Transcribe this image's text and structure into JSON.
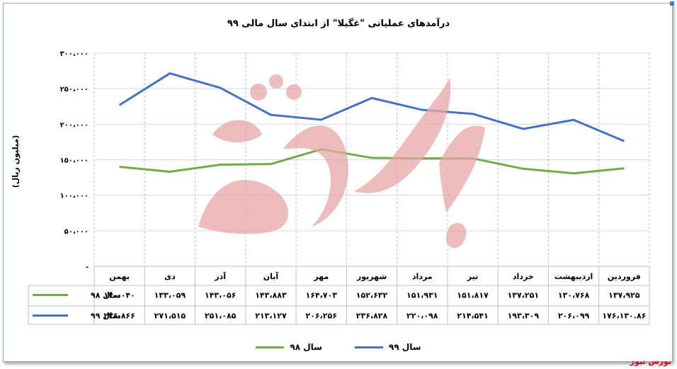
{
  "title": "درآمدهای عملیاتی \"غگیلا\"  از ابتدای سال مالی ۹۹",
  "brand": "بورس نیوز",
  "chart_data": {
    "type": "line",
    "title": "درآمدهای عملیاتی \"غگیلا\"  از ابتدای سال مالی ۹۹",
    "ylabel": "(میلیون ریال)",
    "xlabel": "",
    "ylim": [
      0,
      300000
    ],
    "y_ticks": [
      0,
      50000,
      100000,
      150000,
      200000,
      250000,
      300000
    ],
    "y_tick_labels": [
      "-",
      "۵۰،۰۰۰",
      "۱۰۰،۰۰۰",
      "۱۵۰،۰۰۰",
      "۲۰۰،۰۰۰",
      "۲۵۰،۰۰۰",
      "۳۰۰،۰۰۰"
    ],
    "grid": true,
    "legend_position": "bottom",
    "categories": [
      "فروردین",
      "اردیبهشت",
      "خرداد",
      "تیر",
      "مرداد",
      "شهریور",
      "مهر",
      "آبان",
      "آذر",
      "دی",
      "بهمن"
    ],
    "series": [
      {
        "name": "سال ۹۸",
        "color": "#70ad47",
        "values": [
          137925,
          130768,
          137251,
          151817,
          151931,
          152632,
          164703,
          143883,
          143056,
          133059,
          140040
        ],
        "labels": [
          "۱۳۷،۹۲۵",
          "۱۳۰،۷۶۸",
          "۱۳۷،۲۵۱",
          "۱۵۱،۸۱۷",
          "۱۵۱،۹۳۱",
          "۱۵۲،۶۳۲",
          "۱۶۴،۷۰۳",
          "۱۴۳،۸۸۳",
          "۱۴۳،۰۵۶",
          "۱۳۳،۰۵۹",
          "۱۴۰،۰۴۰"
        ]
      },
      {
        "name": "سال ۹۹",
        "color": "#4472c4",
        "values": [
          176130,
          206099,
          193309,
          214541,
          220098,
          236828,
          206256,
          213127,
          251085,
          271515,
          226866
        ],
        "labels": [
          "۱۷۶،۱۳۰.۸۶",
          "۲۰۶،۰۹۹",
          "۱۹۳،۳۰۹",
          "۲۱۴،۵۴۱",
          "۲۲۰،۰۹۸",
          "۲۳۶،۸۲۸",
          "۲۰۶،۲۵۶",
          "۲۱۳،۱۲۷",
          "۲۵۱،۰۸۵",
          "۲۷۱،۵۱۵",
          "۲۲۶،۸۶۶"
        ]
      }
    ]
  }
}
